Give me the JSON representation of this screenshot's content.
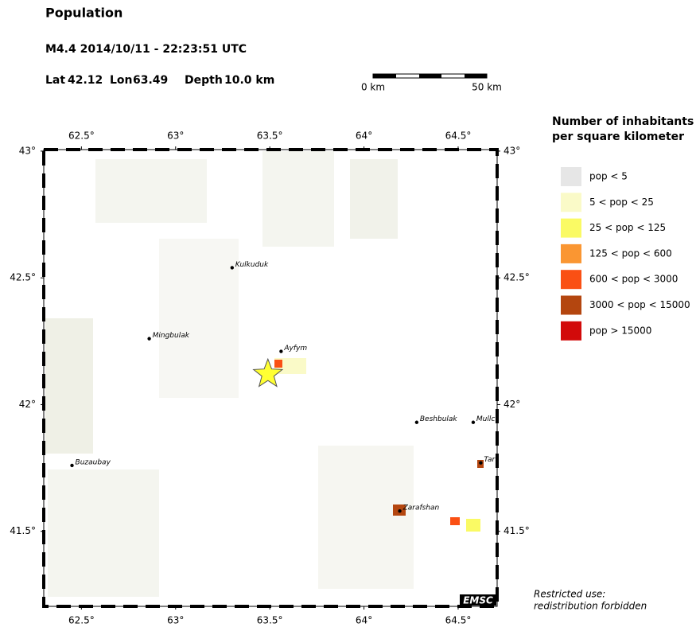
{
  "header": {
    "title": "Population",
    "event": "M4.4  2014/10/11 - 22:23:51 UTC",
    "lat_label": "Lat",
    "lat": 42.12,
    "lon_label": "Lon",
    "lon": 63.49,
    "depth_label": "Depth",
    "depth": "10.0 km"
  },
  "scale_bar": {
    "start": "0 km",
    "end": "50 km"
  },
  "map": {
    "lon_range": [
      62.3,
      64.707
    ],
    "lat_range": [
      41.204,
      43.006
    ],
    "lon_ticks": [
      {
        "value": 62.5,
        "label": "62.5°"
      },
      {
        "value": 63,
        "label": "63°"
      },
      {
        "value": 63.5,
        "label": "63.5°"
      },
      {
        "value": 64,
        "label": "64°"
      },
      {
        "value": 64.5,
        "label": "64.5°"
      }
    ],
    "lat_ticks": [
      {
        "value": 43,
        "label": "43°"
      },
      {
        "value": 42.5,
        "label": "42.5°"
      },
      {
        "value": 42,
        "label": "42°"
      },
      {
        "value": 41.5,
        "label": "41.5°"
      }
    ],
    "places": [
      {
        "name": "Kulkuduk",
        "lon": 63.3,
        "lat": 42.54
      },
      {
        "name": "Mingbulak",
        "lon": 62.86,
        "lat": 42.26
      },
      {
        "name": "Ayfym",
        "lon": 63.56,
        "lat": 42.21
      },
      {
        "name": "Beshbulak",
        "lon": 64.28,
        "lat": 41.93
      },
      {
        "name": "Mullc",
        "lon": 64.58,
        "lat": 41.93
      },
      {
        "name": "Tar",
        "lon": 64.62,
        "lat": 41.77
      },
      {
        "name": "Zarafshan",
        "lon": 64.19,
        "lat": 41.58
      },
      {
        "name": "Buzaubay",
        "lon": 62.45,
        "lat": 41.76
      }
    ],
    "credit": "EMSC"
  },
  "legend": {
    "title": [
      "Number of inhabitants",
      "per square kilometer"
    ],
    "items": [
      {
        "label": "pop < 5",
        "color": "#e6e6e6"
      },
      {
        "label": "5 < pop < 25",
        "color": "#fafac8"
      },
      {
        "label": "25 < pop < 125",
        "color": "#fafa64"
      },
      {
        "label": "125 < pop < 600",
        "color": "#fa9632"
      },
      {
        "label": "600 < pop < 3000",
        "color": "#fa5014"
      },
      {
        "label": "3000 < pop < 15000",
        "color": "#b4460f"
      },
      {
        "label": "pop > 15000",
        "color": "#d20a0a"
      }
    ]
  },
  "notice": [
    "Restricted use:",
    "redistribution forbidden"
  ]
}
